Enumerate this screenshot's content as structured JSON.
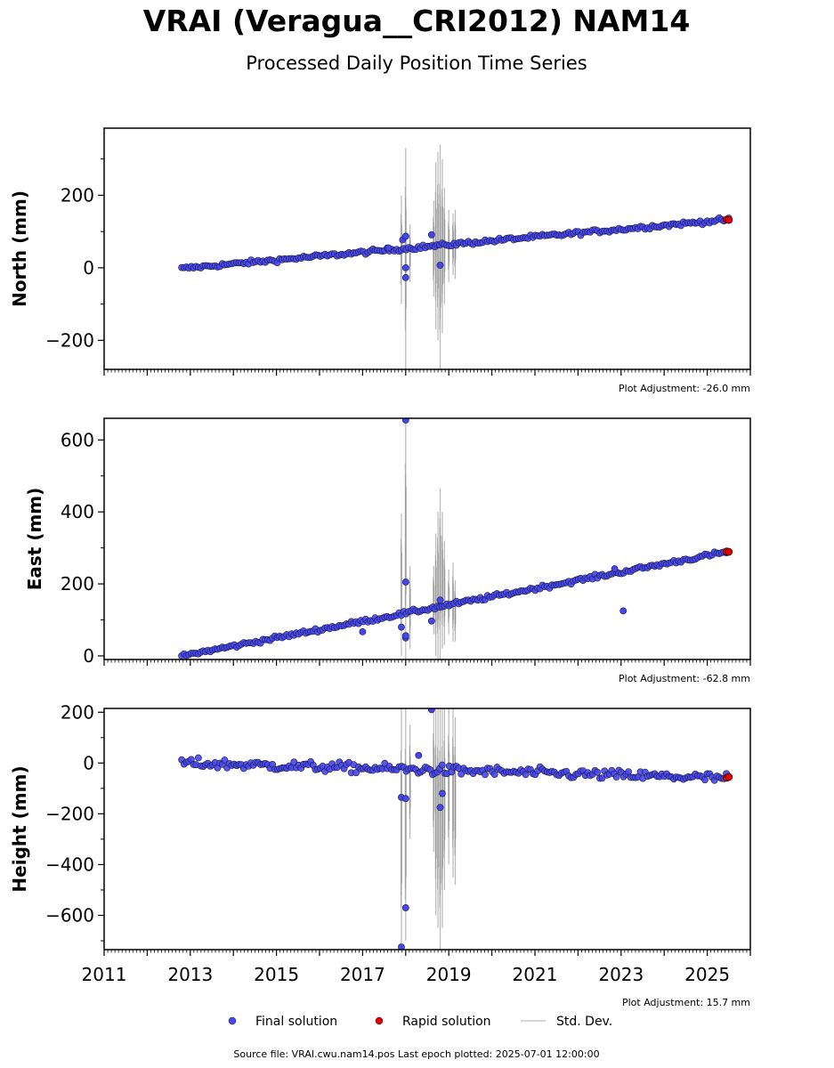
{
  "header": {
    "title": "VRAI (Veragua__CRI2012) NAM14",
    "subtitle": "Processed Daily Position Time Series"
  },
  "legend": {
    "final_label": "Final solution",
    "rapid_label": "Rapid solution",
    "stddev_label": "Std. Dev."
  },
  "footer": {
    "text": "Source file: VRAI.cwu.nam14.pos  Last epoch plotted: 2025-07-01 12:00:00"
  },
  "colors": {
    "final": "#4646f0",
    "rapid": "#e00000",
    "stddev": "#808080"
  },
  "chart_data": [
    {
      "type": "scatter",
      "ylabel": "North (mm)",
      "xlim": [
        2011,
        2026
      ],
      "ylim": [
        -280,
        385
      ],
      "yticks": [
        -200,
        0,
        200
      ],
      "yticks_labels": [
        "−200",
        "0",
        "200"
      ],
      "adjustment": "Plot Adjustment: -26.0 mm",
      "trend": {
        "x0": 2012.8,
        "y0": -2,
        "x1": 2025.5,
        "y1": 133
      },
      "noise": 4,
      "outliers": [
        {
          "x": 2017.93,
          "y": 77
        },
        {
          "x": 2018.0,
          "y": 87
        },
        {
          "x": 2018.0,
          "y": 0
        },
        {
          "x": 2018.0,
          "y": -27
        },
        {
          "x": 2018.6,
          "y": 91
        },
        {
          "x": 2018.8,
          "y": 7
        },
        {
          "x": 2017.6,
          "y": 55
        }
      ],
      "errorbars": [
        {
          "x": 2017.9,
          "lo": -100,
          "hi": 200
        },
        {
          "x": 2018.0,
          "lo": -280,
          "hi": 330
        },
        {
          "x": 2018.1,
          "lo": -40,
          "hi": 120
        },
        {
          "x": 2018.65,
          "lo": -80,
          "hi": 185
        },
        {
          "x": 2018.7,
          "lo": -170,
          "hi": 290
        },
        {
          "x": 2018.75,
          "lo": -200,
          "hi": 320
        },
        {
          "x": 2018.8,
          "lo": -280,
          "hi": 340
        },
        {
          "x": 2018.85,
          "lo": -180,
          "hi": 300
        },
        {
          "x": 2018.9,
          "lo": -100,
          "hi": 220
        },
        {
          "x": 2019.0,
          "lo": -40,
          "hi": 160
        },
        {
          "x": 2019.1,
          "lo": -20,
          "hi": 150
        },
        {
          "x": 2019.15,
          "lo": -30,
          "hi": 160
        }
      ],
      "rapid": [
        {
          "x": 2025.45,
          "y": 133
        },
        {
          "x": 2025.5,
          "y": 132
        }
      ]
    },
    {
      "type": "scatter",
      "ylabel": "East (mm)",
      "xlim": [
        2011,
        2026
      ],
      "ylim": [
        -10,
        660
      ],
      "yticks": [
        0,
        200,
        400,
        600
      ],
      "yticks_labels": [
        "0",
        "200",
        "400",
        "600"
      ],
      "adjustment": "Plot Adjustment: -62.8 mm",
      "trend": {
        "x0": 2012.8,
        "y0": 0,
        "x1": 2025.5,
        "y1": 290
      },
      "noise": 4,
      "outliers": [
        {
          "x": 2017.9,
          "y": 80
        },
        {
          "x": 2018.0,
          "y": 205
        },
        {
          "x": 2018.0,
          "y": 655
        },
        {
          "x": 2018.0,
          "y": 50
        },
        {
          "x": 2018.0,
          "y": 56
        },
        {
          "x": 2018.6,
          "y": 97
        },
        {
          "x": 2018.8,
          "y": 155
        },
        {
          "x": 2023.05,
          "y": 125
        },
        {
          "x": 2017.0,
          "y": 67
        },
        {
          "x": 2022.85,
          "y": 242
        }
      ],
      "errorbars": [
        {
          "x": 2017.9,
          "lo": 0,
          "hi": 395
        },
        {
          "x": 2018.0,
          "lo": -10,
          "hi": 650
        },
        {
          "x": 2018.1,
          "lo": 20,
          "hi": 250
        },
        {
          "x": 2018.65,
          "lo": 60,
          "hi": 250
        },
        {
          "x": 2018.7,
          "lo": 0,
          "hi": 340
        },
        {
          "x": 2018.75,
          "lo": -10,
          "hi": 400
        },
        {
          "x": 2018.8,
          "lo": -10,
          "hi": 465
        },
        {
          "x": 2018.85,
          "lo": 20,
          "hi": 400
        },
        {
          "x": 2018.9,
          "lo": 30,
          "hi": 320
        },
        {
          "x": 2019.0,
          "lo": 60,
          "hi": 240
        },
        {
          "x": 2019.1,
          "lo": 40,
          "hi": 260
        },
        {
          "x": 2019.15,
          "lo": 40,
          "hi": 210
        }
      ],
      "rapid": [
        {
          "x": 2025.45,
          "y": 290
        },
        {
          "x": 2025.5,
          "y": 289
        }
      ]
    },
    {
      "type": "scatter",
      "ylabel": "Height (mm)",
      "xlim": [
        2011,
        2026
      ],
      "ylim": [
        -735,
        215
      ],
      "yticks": [
        -600,
        -400,
        -200,
        0,
        200
      ],
      "yticks_labels": [
        "−600",
        "−400",
        "−200",
        "0",
        "200"
      ],
      "xticks": [
        2011,
        2013,
        2015,
        2017,
        2019,
        2021,
        2023,
        2025
      ],
      "xticks_labels": [
        "2011",
        "2013",
        "2015",
        "2017",
        "2019",
        "2021",
        "2023",
        "2025"
      ],
      "adjustment": "Plot Adjustment: 15.7 mm",
      "trend": {
        "x0": 2012.8,
        "y0": 0,
        "x1": 2025.5,
        "y1": -60
      },
      "noise": 14,
      "outliers": [
        {
          "x": 2017.9,
          "y": -135
        },
        {
          "x": 2017.9,
          "y": -725
        },
        {
          "x": 2018.0,
          "y": -570
        },
        {
          "x": 2018.0,
          "y": -140
        },
        {
          "x": 2018.6,
          "y": 210
        },
        {
          "x": 2018.8,
          "y": -175
        },
        {
          "x": 2018.3,
          "y": 30
        },
        {
          "x": 2018.85,
          "y": -120
        }
      ],
      "errorbars": [
        {
          "x": 2017.9,
          "lo": -735,
          "hi": 215
        },
        {
          "x": 2018.0,
          "lo": -700,
          "hi": 215
        },
        {
          "x": 2018.1,
          "lo": -300,
          "hi": 150
        },
        {
          "x": 2018.65,
          "lo": -350,
          "hi": 215
        },
        {
          "x": 2018.7,
          "lo": -600,
          "hi": 215
        },
        {
          "x": 2018.75,
          "lo": -650,
          "hi": 215
        },
        {
          "x": 2018.8,
          "lo": -735,
          "hi": 215
        },
        {
          "x": 2018.85,
          "lo": -650,
          "hi": 215
        },
        {
          "x": 2018.9,
          "lo": -500,
          "hi": 215
        },
        {
          "x": 2019.0,
          "lo": -400,
          "hi": 215
        },
        {
          "x": 2019.1,
          "lo": -450,
          "hi": 215
        },
        {
          "x": 2019.15,
          "lo": -480,
          "hi": 180
        }
      ],
      "rapid": [
        {
          "x": 2025.45,
          "y": -58
        },
        {
          "x": 2025.5,
          "y": -55
        }
      ]
    }
  ]
}
